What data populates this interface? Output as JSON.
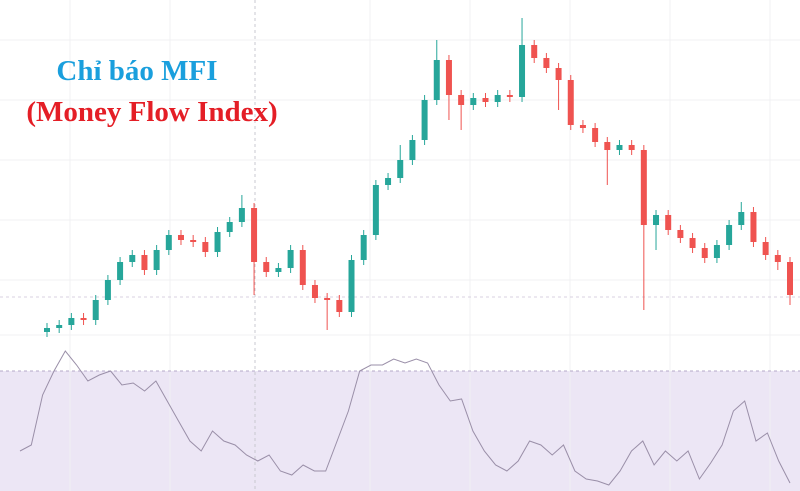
{
  "chart_data": [
    {
      "type": "candlestick",
      "title": "Chỉ báo MFI",
      "subtitle": "(Money Flow Index)",
      "title_color": "#1a9fdd",
      "subtitle_color": "#e41e26",
      "up_color": "#26a69a",
      "down_color": "#ef5350",
      "ylim": [
        0,
        340
      ],
      "open": [
        8,
        12,
        15,
        22,
        20,
        40,
        60,
        78,
        85,
        70,
        90,
        105,
        100,
        98,
        88,
        108,
        118,
        132,
        78,
        68,
        72,
        90,
        55,
        42,
        40,
        28,
        80,
        105,
        155,
        162,
        180,
        200,
        240,
        280,
        245,
        235,
        242,
        238,
        245,
        243,
        295,
        282,
        272,
        260,
        215,
        212,
        198,
        190,
        195,
        190,
        115,
        125,
        110,
        102,
        92,
        82,
        95,
        115,
        128,
        98,
        85,
        78
      ],
      "high": [
        17,
        20,
        27,
        27,
        45,
        65,
        83,
        90,
        90,
        95,
        110,
        110,
        105,
        103,
        113,
        123,
        145,
        137,
        83,
        77,
        95,
        95,
        60,
        47,
        45,
        85,
        110,
        160,
        167,
        195,
        205,
        245,
        300,
        285,
        250,
        247,
        247,
        250,
        250,
        322,
        300,
        287,
        277,
        265,
        220,
        217,
        203,
        200,
        200,
        195,
        130,
        130,
        115,
        107,
        97,
        100,
        120,
        138,
        133,
        103,
        90,
        83
      ],
      "low": [
        3,
        7,
        10,
        15,
        15,
        35,
        55,
        73,
        65,
        65,
        85,
        95,
        93,
        83,
        83,
        103,
        113,
        45,
        63,
        63,
        67,
        50,
        37,
        10,
        23,
        23,
        75,
        100,
        150,
        157,
        175,
        195,
        235,
        220,
        210,
        230,
        233,
        233,
        238,
        238,
        277,
        267,
        230,
        210,
        207,
        193,
        155,
        185,
        185,
        30,
        90,
        105,
        97,
        87,
        77,
        77,
        90,
        110,
        93,
        80,
        70,
        35
      ],
      "close": [
        12,
        15,
        22,
        20,
        40,
        60,
        78,
        85,
        70,
        90,
        105,
        100,
        98,
        88,
        108,
        118,
        132,
        78,
        68,
        72,
        90,
        55,
        42,
        40,
        28,
        80,
        105,
        155,
        162,
        180,
        200,
        240,
        280,
        245,
        235,
        242,
        238,
        245,
        243,
        295,
        282,
        272,
        260,
        215,
        212,
        198,
        190,
        195,
        190,
        115,
        125,
        110,
        102,
        92,
        82,
        95,
        115,
        128,
        98,
        85,
        78,
        45
      ]
    },
    {
      "type": "line",
      "color": "#9a8fa8",
      "band": [
        20,
        80
      ],
      "band_color": "#ece6f5",
      "ylim": [
        20,
        95
      ],
      "values": [
        40,
        43,
        68,
        80,
        90,
        83,
        75,
        78,
        80,
        73,
        74,
        70,
        75,
        65,
        55,
        45,
        40,
        50,
        45,
        43,
        38,
        35,
        38,
        30,
        28,
        33,
        30,
        30,
        45,
        60,
        80,
        83,
        83,
        86,
        84,
        86,
        84,
        73,
        65,
        66,
        50,
        40,
        33,
        30,
        35,
        45,
        43,
        38,
        43,
        30,
        26,
        25,
        23,
        30,
        40,
        45,
        33,
        40,
        35,
        40,
        26,
        34,
        43,
        60,
        65,
        45,
        49,
        35,
        24
      ]
    }
  ]
}
